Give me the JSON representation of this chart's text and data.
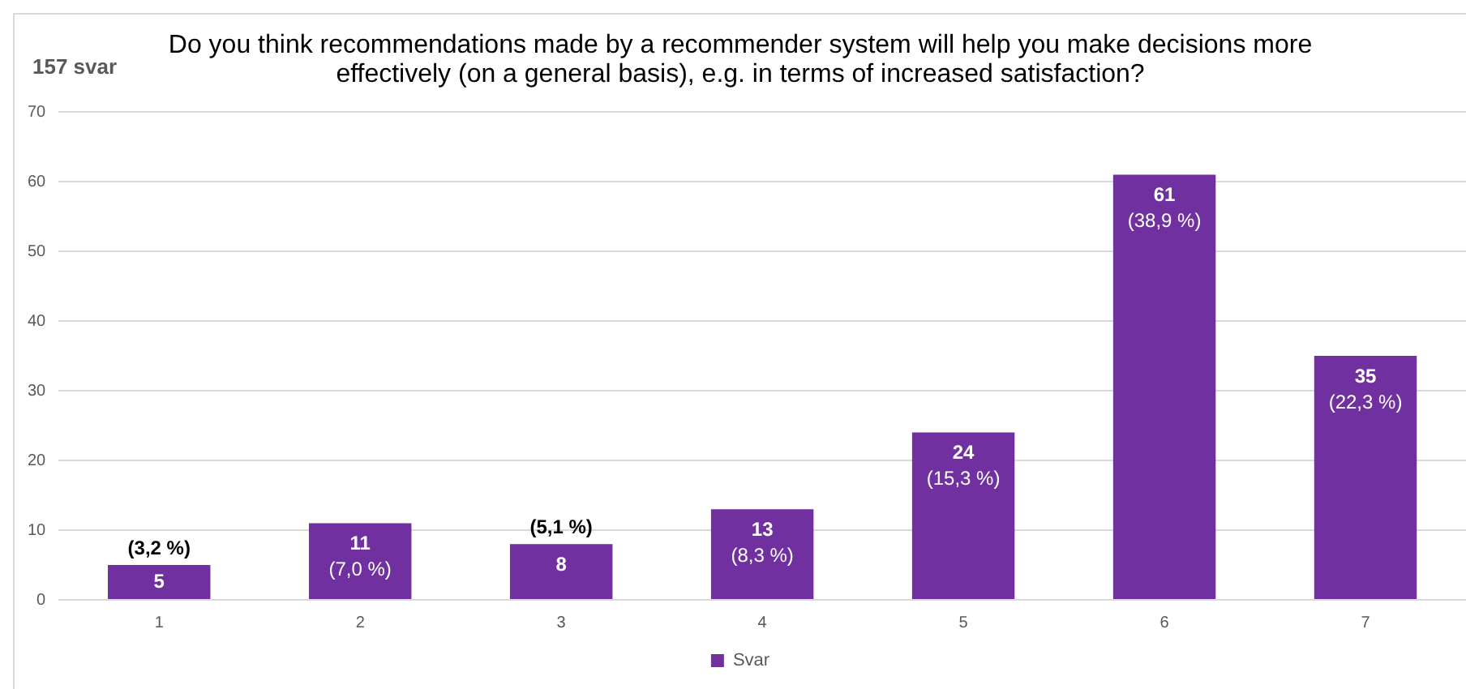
{
  "chart_data": {
    "type": "bar",
    "title": "Do you think recommendations made by a recommender system will help you make decisions more effectively (on a general basis), e.g. in terms of increased satisfaction?",
    "subtitle": "157 svar",
    "categories": [
      "1",
      "2",
      "3",
      "4",
      "5",
      "6",
      "7"
    ],
    "series": [
      {
        "name": "Svar",
        "color": "#7030a0",
        "values": [
          5,
          11,
          8,
          13,
          24,
          61,
          35
        ],
        "value_labels": [
          "5\n(3,2 %)",
          "11\n(7,0 %)",
          "8\n(5,1 %)",
          "13\n(8,3 %)",
          "24\n(15,3 %)",
          "61\n(38,9 %)",
          "35\n(22,3 %)"
        ]
      }
    ],
    "ylim": [
      0,
      70
    ],
    "yticks": [
      0,
      10,
      20,
      30,
      40,
      50,
      60,
      70
    ],
    "grid": "y",
    "legend": "bottom"
  }
}
